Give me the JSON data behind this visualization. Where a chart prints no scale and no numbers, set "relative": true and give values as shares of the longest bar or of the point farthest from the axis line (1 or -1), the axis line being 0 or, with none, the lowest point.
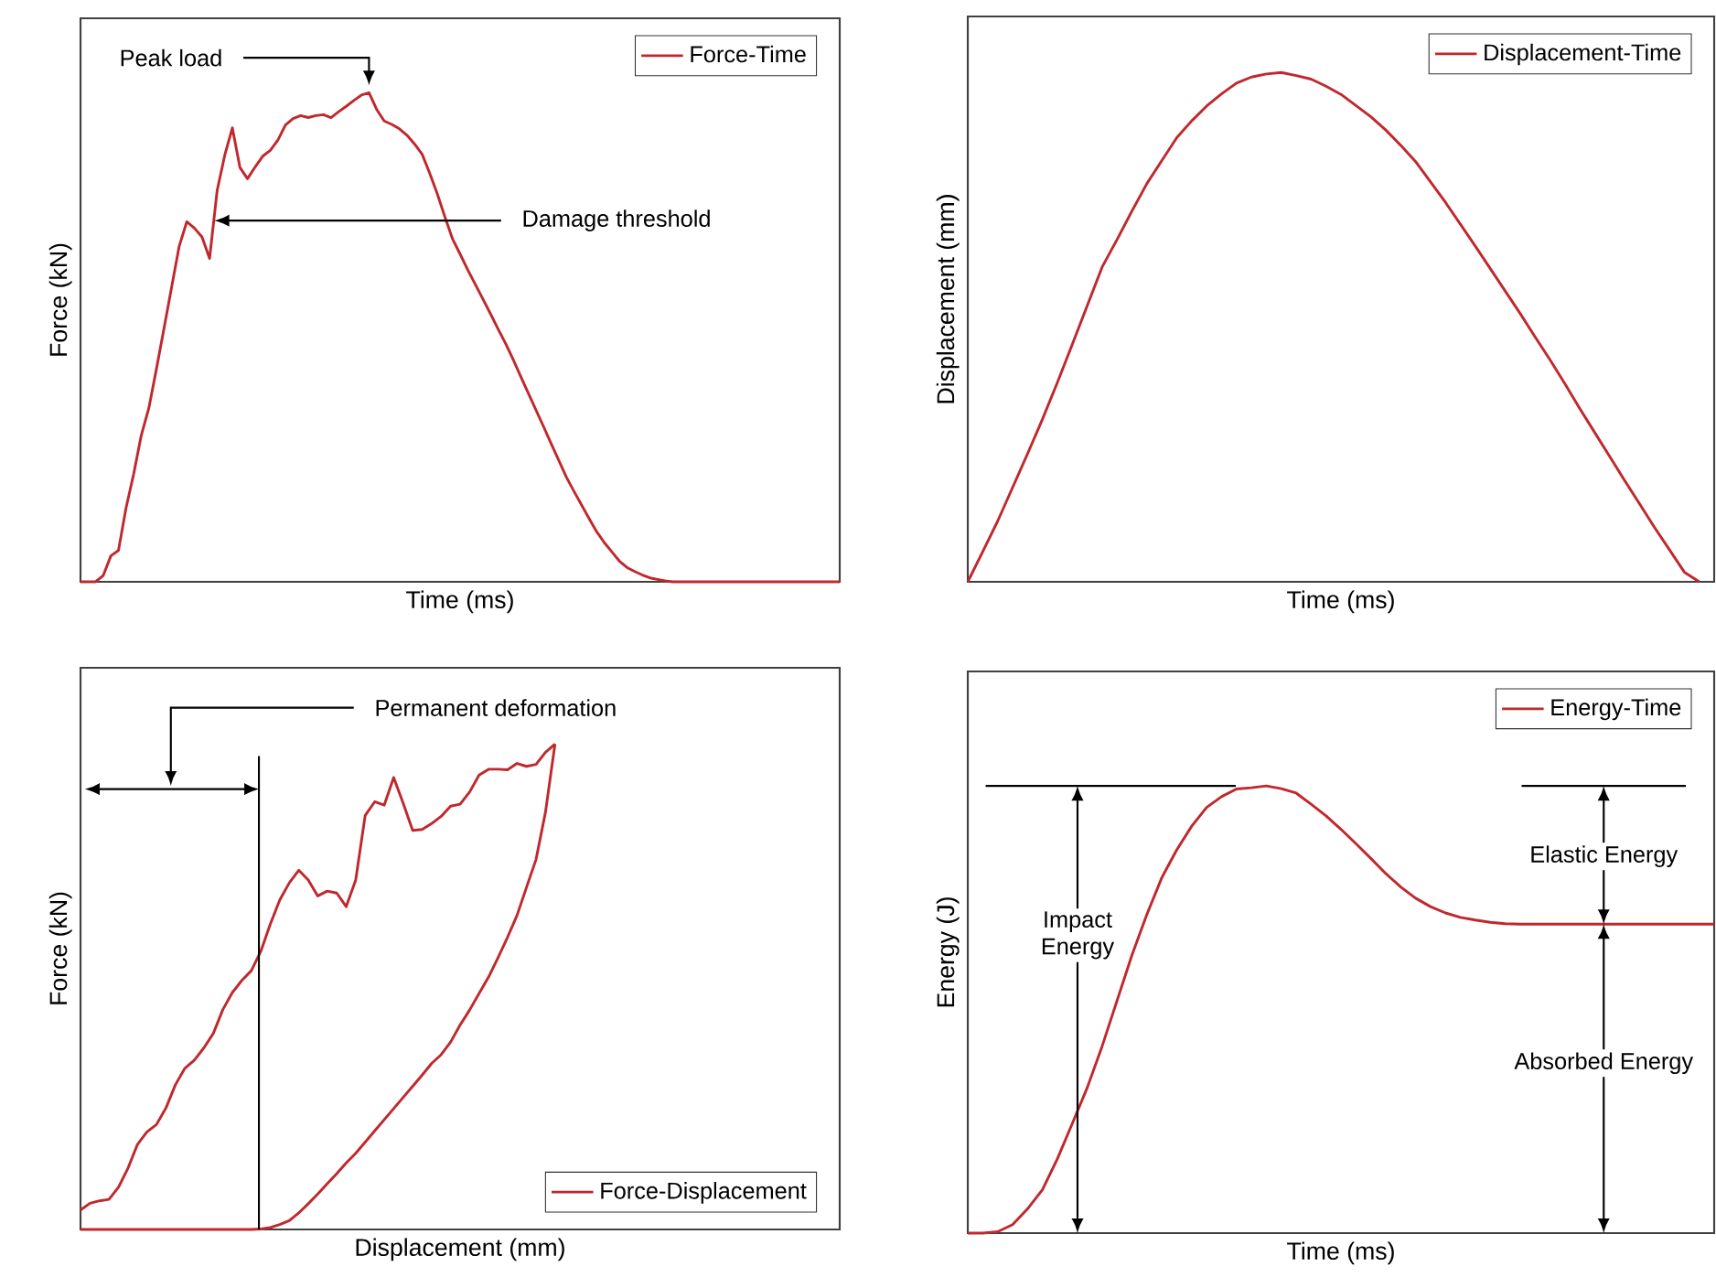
{
  "chart_data": [
    {
      "type": "line",
      "relative": true,
      "tick_labels": false,
      "xlabel": "Time (ms)",
      "ylabel": "Force (kN)",
      "legend": "top right",
      "categories": [
        null,
        null,
        null,
        null,
        null,
        null,
        null,
        null,
        null,
        null,
        null,
        null,
        null,
        null,
        null,
        null,
        null,
        null,
        null,
        null,
        null,
        null,
        null,
        null,
        null,
        null,
        null,
        null,
        null,
        null,
        null,
        null,
        null,
        null,
        null,
        null,
        null,
        null,
        null,
        null,
        null,
        null,
        null,
        null,
        null,
        null,
        null,
        null,
        null,
        null,
        null,
        null,
        null,
        null,
        null,
        null,
        null,
        null,
        null,
        null,
        null,
        null,
        null,
        null,
        null,
        null,
        null,
        null,
        null,
        null,
        null,
        null,
        null,
        null,
        null,
        null,
        null,
        null,
        null,
        null,
        null,
        null,
        null,
        null,
        null,
        null,
        null,
        null,
        null,
        null,
        null,
        null,
        null,
        null,
        null,
        null,
        null,
        null,
        null,
        null,
        null
      ],
      "series": [
        {
          "name": "Force-Time",
          "color": "#c0282d",
          "values": [
            0,
            0,
            0,
            0.013,
            0.053,
            0.064,
            0.151,
            0.22,
            0.299,
            0.355,
            0.435,
            0.518,
            0.602,
            0.686,
            0.736,
            0.723,
            0.705,
            0.661,
            0.8,
            0.872,
            0.928,
            0.847,
            0.824,
            0.848,
            0.87,
            0.882,
            0.903,
            0.934,
            0.947,
            0.953,
            0.949,
            0.953,
            0.955,
            0.949,
            0.961,
            0.972,
            0.984,
            0.995,
            1,
            0.966,
            0.942,
            0.935,
            0.926,
            0.913,
            0.895,
            0.874,
            0.835,
            0.793,
            0.746,
            0.701,
            0.67,
            0.638,
            0.608,
            0.578,
            0.548,
            0.517,
            0.487,
            0.454,
            0.419,
            0.385,
            0.351,
            0.317,
            0.282,
            0.248,
            0.214,
            0.185,
            0.157,
            0.129,
            0.102,
            0.08,
            0.061,
            0.042,
            0.029,
            0.021,
            0.014,
            0.008,
            0.005,
            0.002,
            0,
            0,
            0,
            0,
            0,
            0,
            0,
            0,
            0,
            0,
            0,
            0,
            0,
            0,
            0,
            0,
            0,
            0,
            0,
            0,
            0,
            0,
            0
          ]
        }
      ],
      "annotations": [
        "Peak load",
        "Damage threshold"
      ]
    },
    {
      "type": "line",
      "relative": true,
      "tick_labels": false,
      "xlabel": "Time (ms)",
      "ylabel": "Displacement (mm)",
      "legend": "top right",
      "categories": [
        null,
        null,
        null,
        null,
        null,
        null,
        null,
        null,
        null,
        null,
        null,
        null,
        null,
        null,
        null,
        null,
        null,
        null,
        null,
        null,
        null,
        null,
        null,
        null,
        null,
        null,
        null,
        null,
        null,
        null,
        null,
        null,
        null,
        null,
        null,
        null,
        null,
        null,
        null,
        null,
        null,
        null,
        null,
        null,
        null,
        null,
        null,
        null,
        null,
        null,
        null
      ],
      "series": [
        {
          "name": "Displacement-Time",
          "color": "#c0282d",
          "values": [
            0,
            0.059,
            0.119,
            0.185,
            0.251,
            0.319,
            0.391,
            0.466,
            0.542,
            0.618,
            0.672,
            0.728,
            0.782,
            0.827,
            0.872,
            0.905,
            0.934,
            0.958,
            0.979,
            0.991,
            0.997,
            1,
            0.994,
            0.987,
            0.973,
            0.957,
            0.935,
            0.913,
            0.887,
            0.857,
            0.825,
            0.785,
            0.745,
            0.702,
            0.659,
            0.615,
            0.571,
            0.527,
            0.481,
            0.436,
            0.389,
            0.34,
            0.293,
            0.246,
            0.199,
            0.153,
            0.107,
            0.063,
            0.019,
            0,
            null
          ]
        }
      ]
    },
    {
      "type": "line",
      "relative": true,
      "tick_labels": false,
      "xlabel": "Displacement (mm)",
      "ylabel": "Force (kN)",
      "legend": "bottom right",
      "categories": [
        null,
        null,
        null,
        null,
        null,
        null,
        null,
        null,
        null,
        null,
        null,
        null,
        null,
        null,
        null,
        null,
        null,
        null,
        null,
        null,
        null,
        null,
        null,
        null,
        null,
        null,
        null,
        null,
        null,
        null,
        null,
        null,
        null,
        null,
        null,
        null,
        null,
        null,
        null,
        null,
        null,
        null,
        null,
        null,
        null,
        null,
        null,
        null,
        null,
        null,
        null,
        null,
        null,
        null,
        null,
        null,
        null,
        null,
        null,
        null,
        null,
        null,
        null,
        null,
        null,
        null,
        null,
        null,
        null,
        null,
        null,
        null,
        null,
        null,
        null,
        null,
        null,
        null,
        null,
        null,
        null
      ],
      "series": [
        {
          "name": "Force-Displacement",
          "color": "#c0282d",
          "values": [
            0.04,
            0.054,
            0.059,
            0.062,
            0.087,
            0.126,
            0.175,
            0.201,
            0.216,
            0.25,
            0.298,
            0.332,
            0.349,
            0.374,
            0.404,
            0.453,
            0.488,
            0.513,
            0.533,
            0.573,
            0.629,
            0.679,
            0.714,
            0.74,
            0.72,
            0.687,
            0.697,
            0.693,
            0.665,
            0.72,
            0.853,
            0.881,
            0.874,
            0.931,
            0.878,
            0.822,
            0.824,
            0.836,
            0.851,
            0.872,
            0.876,
            0.901,
            0.936,
            0.948,
            0.948,
            0.947,
            0.96,
            0.954,
            0.958,
            0.983,
            1,
            null,
            null,
            null,
            null,
            null,
            null,
            null,
            null,
            null,
            null,
            null,
            null,
            null,
            null,
            null,
            null,
            null,
            null,
            null,
            null,
            null,
            null,
            null,
            null,
            null,
            null,
            null,
            null,
            null,
            null
          ]
        },
        {
          "color": "#c0282d",
          "values": [
            0,
            0,
            0,
            0,
            0,
            0,
            0,
            0,
            0,
            0,
            0,
            0,
            0,
            0,
            0,
            0,
            0,
            0,
            0,
            0.001,
            0.004,
            0.01,
            0.018,
            0.034,
            0.053,
            0.073,
            0.094,
            0.115,
            0.137,
            0.157,
            0.18,
            0.203,
            0.226,
            0.249,
            0.272,
            0.295,
            0.318,
            0.342,
            0.36,
            0.386,
            0.421,
            0.452,
            0.486,
            0.52,
            0.56,
            0.602,
            0.647,
            0.705,
            0.762,
            0.86,
            1,
            null,
            null,
            null,
            null,
            null,
            null,
            null,
            null,
            null,
            null,
            null,
            null,
            null,
            null,
            null,
            null,
            null,
            null,
            null,
            null,
            null,
            null,
            null,
            null,
            null,
            null,
            null,
            null,
            null,
            null
          ]
        }
      ],
      "annotations": [
        "Permanent deformation"
      ]
    },
    {
      "type": "line",
      "relative": true,
      "tick_labels": false,
      "xlabel": "Time (ms)",
      "ylabel": "Energy (J)",
      "legend": "top right",
      "categories": [
        null,
        null,
        null,
        null,
        null,
        null,
        null,
        null,
        null,
        null,
        null,
        null,
        null,
        null,
        null,
        null,
        null,
        null,
        null,
        null,
        null,
        null,
        null,
        null,
        null,
        null,
        null,
        null,
        null,
        null,
        null,
        null,
        null,
        null,
        null,
        null,
        null,
        null,
        null,
        null,
        null,
        null,
        null,
        null,
        null,
        null,
        null,
        null,
        null,
        null,
        null
      ],
      "series": [
        {
          "name": "Energy-Time",
          "color": "#c0282d",
          "values": [
            0,
            0,
            0.003,
            0.019,
            0.054,
            0.097,
            0.166,
            0.245,
            0.325,
            0.418,
            0.52,
            0.622,
            0.713,
            0.795,
            0.857,
            0.91,
            0.952,
            0.976,
            0.993,
            0.996,
            1,
            0.994,
            0.984,
            0.959,
            0.933,
            0.903,
            0.871,
            0.838,
            0.804,
            0.774,
            0.749,
            0.73,
            0.716,
            0.706,
            0.7,
            0.695,
            0.692,
            0.691,
            0.691,
            0.691,
            0.691,
            0.691,
            0.691,
            0.691,
            0.691,
            0.691,
            0.691,
            0.691,
            0.691,
            0.691,
            0.691
          ]
        }
      ],
      "annotations": [
        "Impact Energy",
        "Elastic Energy",
        "Absorbed Energy"
      ]
    }
  ]
}
